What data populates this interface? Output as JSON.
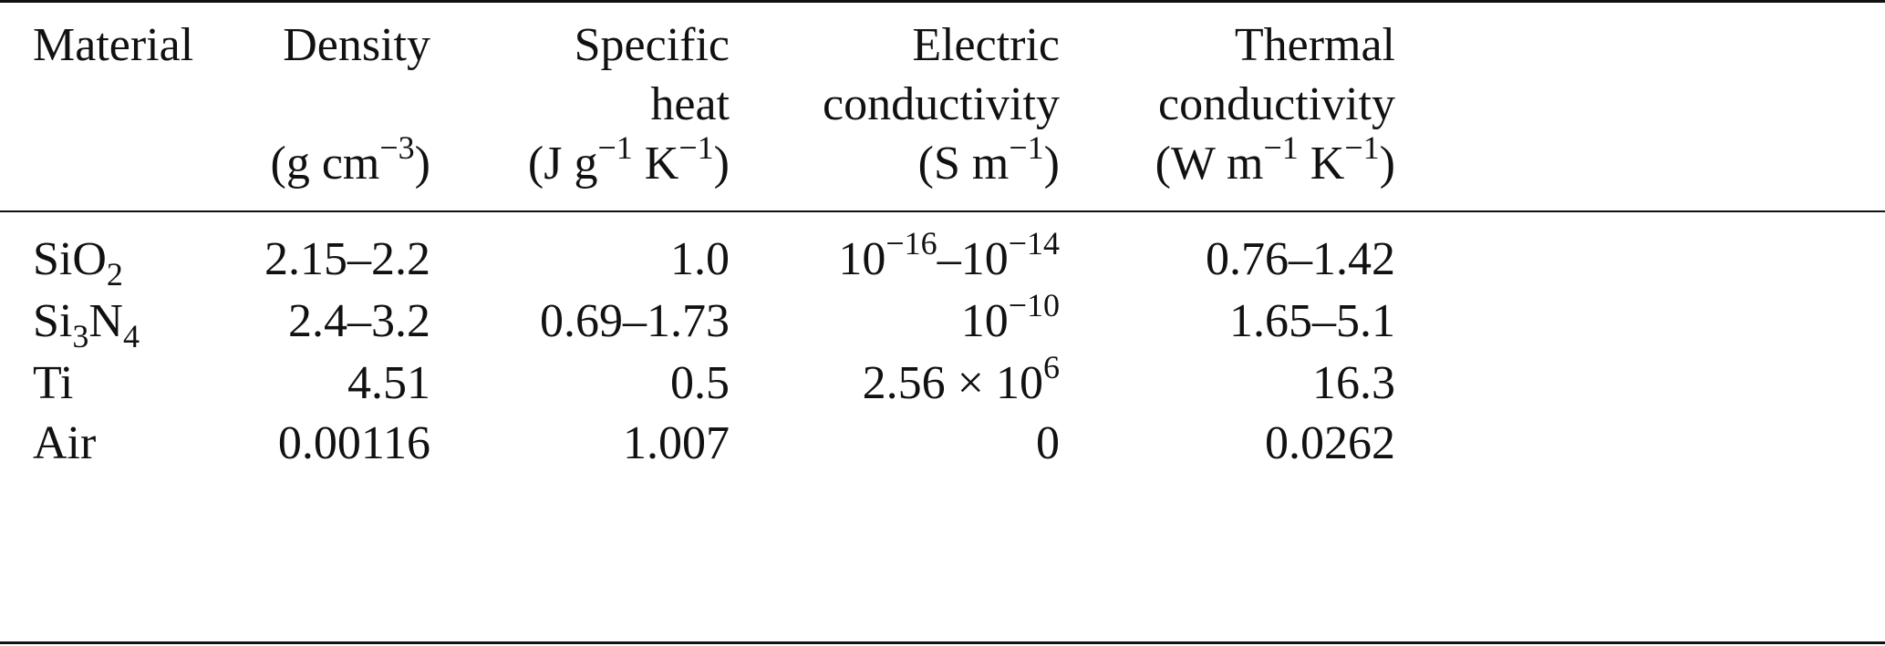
{
  "table": {
    "columns": [
      {
        "title": [
          "Material"
        ]
      },
      {
        "title": [
          "Density"
        ],
        "unit": [
          {
            "text": "(g cm"
          },
          {
            "sup": "−3"
          },
          {
            "text": ")"
          }
        ]
      },
      {
        "title": [
          "Specific",
          "heat"
        ],
        "unit": [
          {
            "text": "(J g"
          },
          {
            "sup": "−1"
          },
          {
            "text": " K"
          },
          {
            "sup": "−1"
          },
          {
            "text": ")"
          }
        ]
      },
      {
        "title": [
          "Electric",
          "conductivity"
        ],
        "unit": [
          {
            "text": "(S m"
          },
          {
            "sup": "−1"
          },
          {
            "text": ")"
          }
        ]
      },
      {
        "title": [
          "Thermal",
          "conductivity"
        ],
        "unit": [
          {
            "text": "(W m"
          },
          {
            "sup": "−1"
          },
          {
            "text": " K"
          },
          {
            "sup": "−1"
          },
          {
            "text": ")"
          }
        ]
      }
    ],
    "rows": [
      [
        [
          {
            "text": "SiO"
          },
          {
            "sub": "2"
          }
        ],
        "2.15–2.2",
        "1.0",
        [
          {
            "text": "10"
          },
          {
            "sup": "−16"
          },
          {
            "text": "–10"
          },
          {
            "sup": "−14"
          }
        ],
        "0.76–1.42"
      ],
      [
        [
          {
            "text": "Si"
          },
          {
            "sub": "3"
          },
          {
            "text": "N"
          },
          {
            "sub": "4"
          }
        ],
        "2.4–3.2",
        "0.69–1.73",
        [
          {
            "text": "10"
          },
          {
            "sup": "−10"
          }
        ],
        "1.65–5.1"
      ],
      [
        "Ti",
        "4.51",
        "0.5",
        [
          {
            "text": "2.56 × 10"
          },
          {
            "sup": "6"
          }
        ],
        "16.3"
      ],
      [
        "Air",
        "0.00116",
        "1.007",
        "0",
        "0.0262"
      ]
    ]
  }
}
